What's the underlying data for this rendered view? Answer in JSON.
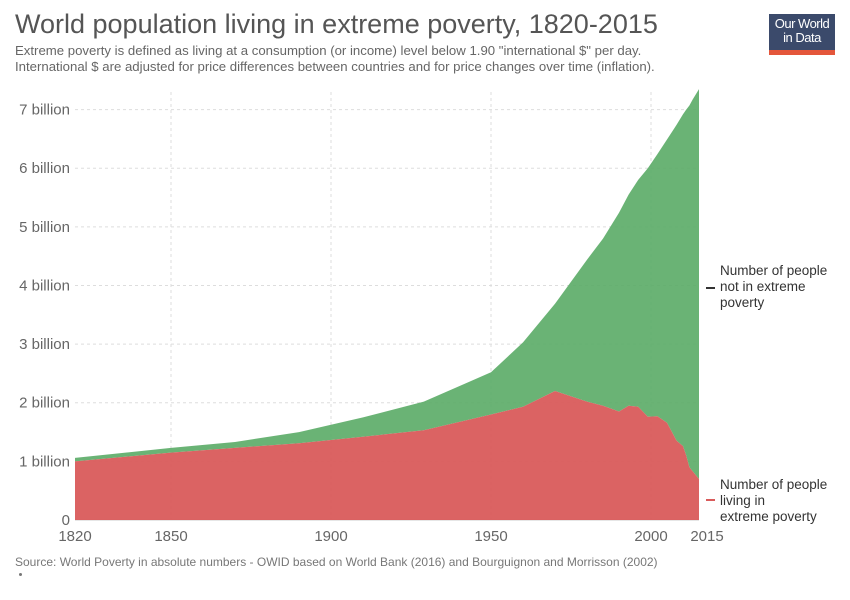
{
  "title": "World population living in extreme poverty, 1820-2015",
  "subtitle_line1": "Extreme poverty is defined as living at a consumption (or income) level below 1.90 \"international $\" per day.",
  "subtitle_line2": "International $ are adjusted for price differences between countries and for price changes over time (inflation).",
  "logo_line1": "Our World",
  "logo_line2": "in Data",
  "source": "Source: World Poverty in absolute numbers - OWID based on World Bank (2016) and Bourguignon and Morrisson (2002)",
  "colors": {
    "not_poverty": "#5aab66",
    "poverty": "#d95b5b",
    "grid": "#dddddd",
    "logo_bg": "#3b4a6b",
    "logo_accent": "#e4563b"
  },
  "chart_data": {
    "type": "area",
    "stacked": true,
    "title": "World population living in extreme poverty, 1820-2015",
    "xlim": [
      1820,
      2015
    ],
    "ylim": [
      0,
      7.3
    ],
    "x_ticks": [
      1820,
      1850,
      1900,
      1950,
      2000,
      2015
    ],
    "y_ticks": [
      {
        "value": 0,
        "label": "0"
      },
      {
        "value": 1,
        "label": "1 billion"
      },
      {
        "value": 2,
        "label": "2 billion"
      },
      {
        "value": 3,
        "label": "3 billion"
      },
      {
        "value": 4,
        "label": "4 billion"
      },
      {
        "value": 5,
        "label": "5 billion"
      },
      {
        "value": 6,
        "label": "6 billion"
      },
      {
        "value": 7,
        "label": "7 billion"
      }
    ],
    "grid": true,
    "legend_placement": "right",
    "x": [
      1820,
      1850,
      1870,
      1890,
      1910,
      1929,
      1950,
      1960,
      1970,
      1980,
      1985,
      1990,
      1993,
      1996,
      1999,
      2002,
      2005,
      2008,
      2010,
      2011,
      2012,
      2013,
      2015
    ],
    "series": [
      {
        "name": "Number of people living in extreme poverty",
        "color": "#d95b5b",
        "values": [
          1.0,
          1.15,
          1.23,
          1.31,
          1.42,
          1.53,
          1.8,
          1.93,
          2.2,
          2.02,
          1.95,
          1.85,
          1.95,
          1.93,
          1.76,
          1.77,
          1.66,
          1.35,
          1.26,
          1.1,
          0.9,
          0.83,
          0.7
        ]
      },
      {
        "name": "Number of people not in extreme poverty",
        "color": "#5aab66",
        "values": [
          0.06,
          0.08,
          0.1,
          0.19,
          0.33,
          0.49,
          0.72,
          1.1,
          1.49,
          2.42,
          2.85,
          3.39,
          3.6,
          3.87,
          4.24,
          4.47,
          4.83,
          5.39,
          5.66,
          5.9,
          6.17,
          6.34,
          6.65
        ]
      }
    ]
  }
}
